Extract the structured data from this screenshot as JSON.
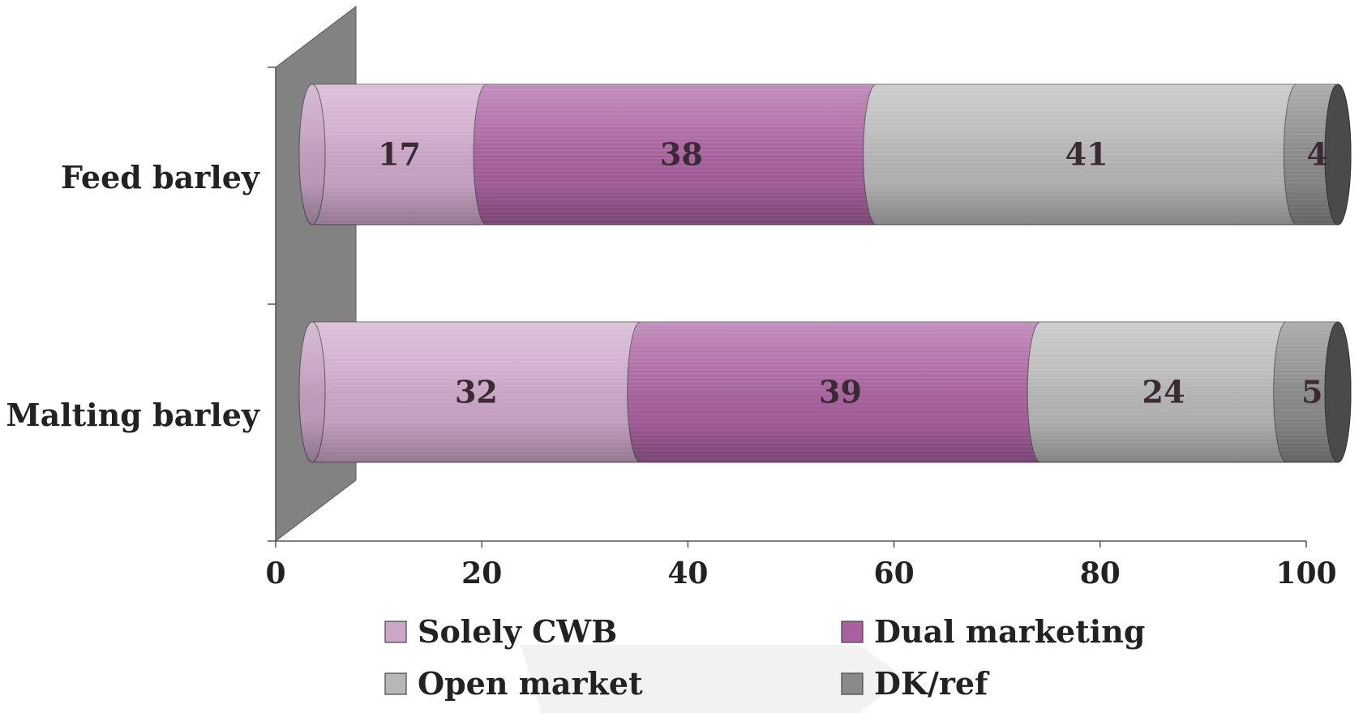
{
  "chart_data": {
    "type": "bar",
    "orientation": "horizontal",
    "stacked": true,
    "style": "3d-cylinder",
    "title": "",
    "xlabel": "",
    "ylabel": "",
    "categories": [
      "Feed barley",
      "Malting barley"
    ],
    "series": [
      {
        "name": "Solely CWB",
        "values": [
          17,
          32
        ],
        "color": "#cda7c9"
      },
      {
        "name": "Dual marketing",
        "values": [
          38,
          39
        ],
        "color": "#a8609e"
      },
      {
        "name": "Open market",
        "values": [
          41,
          24
        ],
        "color": "#b7b7b7"
      },
      {
        "name": "DK/ref",
        "values": [
          4,
          5
        ],
        "color": "#8a8a8a"
      }
    ],
    "xlim": [
      0,
      100
    ],
    "xticks": [
      "0",
      "20",
      "40",
      "60",
      "80",
      "100"
    ],
    "grid": false,
    "legend_position": "bottom"
  }
}
